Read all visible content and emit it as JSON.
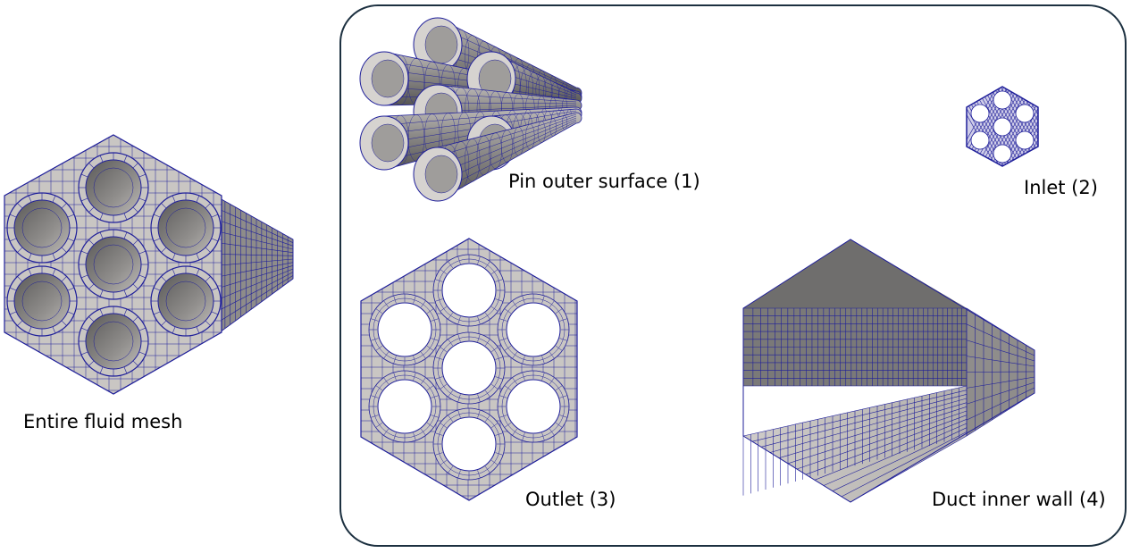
{
  "labels": {
    "entire": "Entire fluid mesh",
    "pin": "Pin outer surface (1)",
    "inlet": "Inlet (2)",
    "outlet": "Outlet (3)",
    "duct": "Duct inner wall (4)"
  },
  "colors": {
    "mesh_line": "#1f1f9a",
    "surface_light": "#c9c6c3",
    "surface_mid": "#9d9b99",
    "surface_dark": "#6e6d6c",
    "frame": "#1c3040"
  }
}
